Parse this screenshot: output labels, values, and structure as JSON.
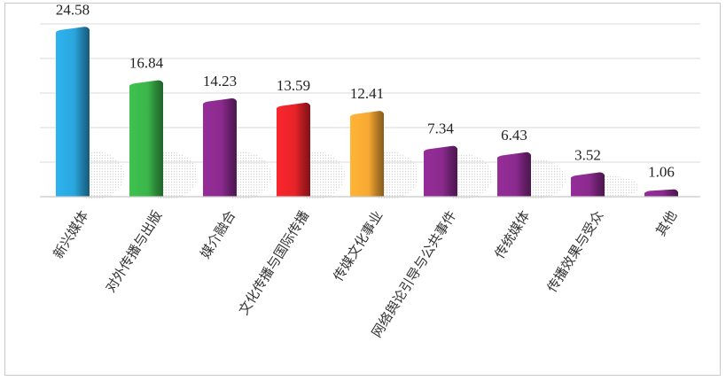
{
  "chart_data": {
    "type": "bar",
    "title": "",
    "xlabel": "",
    "ylabel": "",
    "ylim": [
      0,
      25
    ],
    "grid": true,
    "legend": "none",
    "categories": [
      "新兴媒体",
      "对外传播与出版",
      "媒介融合",
      "文化传播与国际传播",
      "传媒文化事业",
      "网络舆论引导与公共事件",
      "传统媒体",
      "传播效果与受众",
      "其他"
    ],
    "values": [
      24.58,
      16.84,
      14.23,
      13.59,
      12.41,
      7.34,
      6.43,
      3.52,
      1.06
    ],
    "value_labels": [
      "24.58",
      "16.84",
      "14.23",
      "13.59",
      "12.41",
      "7.34",
      "6.43",
      "3.52",
      "1.06"
    ],
    "colors": [
      "#2aa6de",
      "#3ab54a",
      "#8b2a8e",
      "#e8232a",
      "#f7a833",
      "#8b2a8e",
      "#8b2a8e",
      "#8b2a8e",
      "#8b2a8e"
    ]
  }
}
